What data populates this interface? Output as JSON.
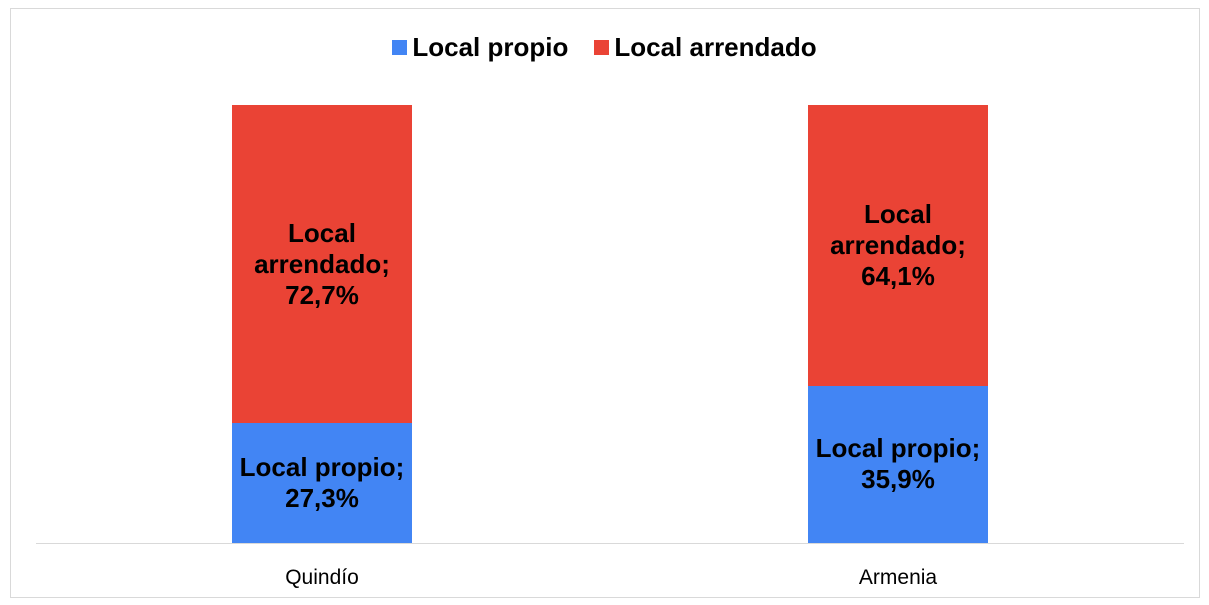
{
  "chart_data": {
    "type": "stacked_bar",
    "categories": [
      "Quindío",
      "Armenia"
    ],
    "series": [
      {
        "name": "Local propio",
        "color": "#4285f4",
        "values": [
          27.3,
          35.9
        ],
        "value_labels": [
          "Local propio; 27,3%",
          "Local propio; 35,9%"
        ]
      },
      {
        "name": "Local arrendado",
        "color": "#ea4335",
        "values": [
          72.7,
          64.1
        ],
        "value_labels": [
          "Local arrendado; 72,7%",
          "Local arrendado; 64,1%"
        ]
      }
    ],
    "legend": "top"
  }
}
